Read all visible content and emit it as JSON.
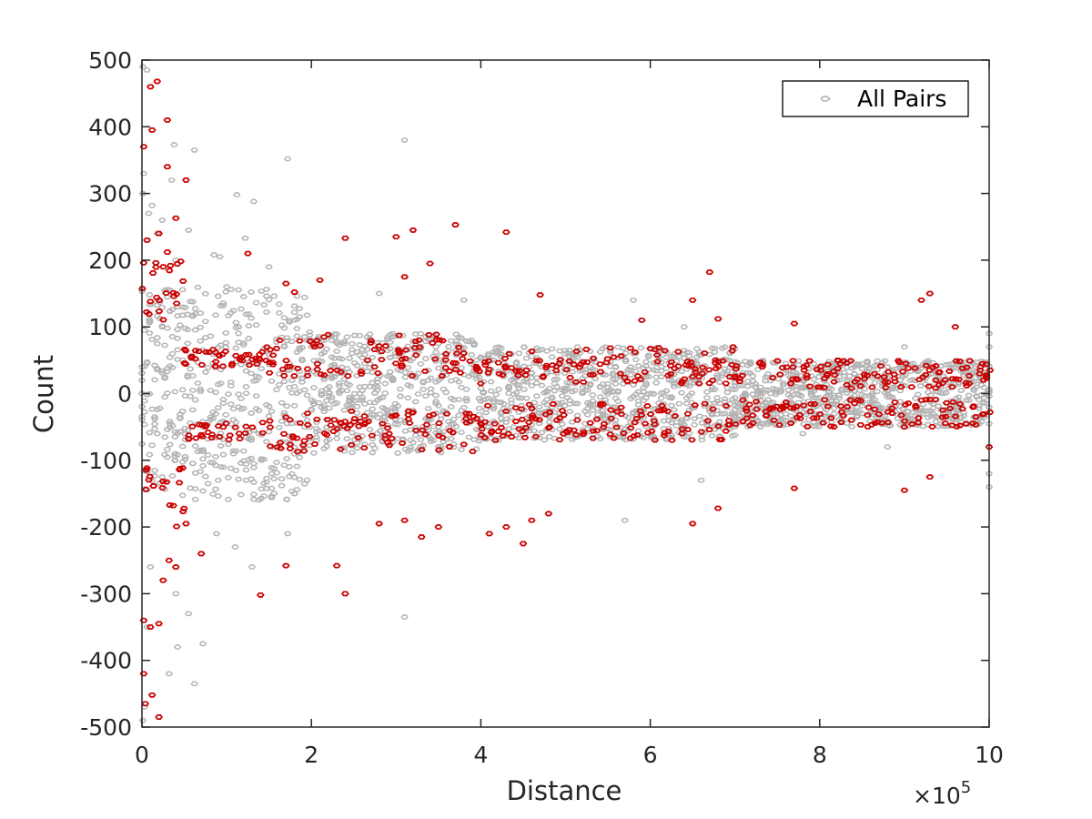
{
  "chart_data": {
    "type": "scatter",
    "xlabel": "Distance",
    "ylabel": "Count",
    "x_exponent_label": {
      "prefix": "×10",
      "exponent": "5"
    },
    "xlim": [
      0,
      1000000
    ],
    "ylim": [
      -500,
      500
    ],
    "x_ticks": [
      0,
      200000,
      400000,
      600000,
      800000,
      1000000
    ],
    "x_tick_labels": [
      "0",
      "2",
      "4",
      "6",
      "8",
      "10"
    ],
    "y_ticks": [
      -500,
      -400,
      -300,
      -200,
      -100,
      0,
      100,
      200,
      300,
      400,
      500
    ],
    "y_tick_labels": [
      "-500",
      "-400",
      "-300",
      "-200",
      "-100",
      "0",
      "100",
      "200",
      "300",
      "400",
      "500"
    ],
    "grid": false,
    "legend": {
      "placement": "top-right",
      "entries": [
        "All Pairs"
      ]
    },
    "series": [
      {
        "name": "All Pairs",
        "color": "#b3b3b3",
        "marker": "hexagon-open",
        "bands": [
          {
            "x0": 0,
            "x1": 200000,
            "ymin": -160,
            "ymax": 160
          },
          {
            "x0": 200000,
            "x1": 400000,
            "ymin": -90,
            "ymax": 90
          },
          {
            "x0": 400000,
            "x1": 700000,
            "ymin": -70,
            "ymax": 70
          },
          {
            "x0": 700000,
            "x1": 1000000,
            "ymin": -50,
            "ymax": 50
          }
        ],
        "points": [
          [
            1000,
            490
          ],
          [
            6000,
            485
          ],
          [
            2000,
            330
          ],
          [
            1000,
            300
          ],
          [
            12000,
            282
          ],
          [
            8000,
            270
          ],
          [
            38000,
            373
          ],
          [
            62000,
            365
          ],
          [
            35000,
            320
          ],
          [
            24000,
            260
          ],
          [
            18000,
            240
          ],
          [
            55000,
            245
          ],
          [
            40000,
            200
          ],
          [
            85000,
            208
          ],
          [
            92000,
            205
          ],
          [
            112000,
            298
          ],
          [
            132000,
            288
          ],
          [
            122000,
            233
          ],
          [
            172000,
            352
          ],
          [
            150000,
            190
          ],
          [
            100000,
            160
          ],
          [
            280000,
            150
          ],
          [
            310000,
            380
          ],
          [
            380000,
            140
          ],
          [
            580000,
            140
          ],
          [
            640000,
            100
          ],
          [
            900000,
            70
          ],
          [
            1000000,
            90
          ],
          [
            1000000,
            70
          ],
          [
            1000,
            -490
          ],
          [
            3000,
            -470
          ],
          [
            6000,
            -350
          ],
          [
            10000,
            -260
          ],
          [
            32000,
            -420
          ],
          [
            42000,
            -380
          ],
          [
            62000,
            -435
          ],
          [
            72000,
            -375
          ],
          [
            55000,
            -330
          ],
          [
            40000,
            -300
          ],
          [
            88000,
            -210
          ],
          [
            110000,
            -230
          ],
          [
            130000,
            -260
          ],
          [
            172000,
            -210
          ],
          [
            180000,
            -150
          ],
          [
            310000,
            -335
          ],
          [
            570000,
            -190
          ],
          [
            660000,
            -130
          ],
          [
            1000000,
            -120
          ],
          [
            1000000,
            -140
          ],
          [
            880000,
            -80
          ],
          [
            780000,
            -60
          ]
        ]
      },
      {
        "name": "",
        "color": "#cc0000",
        "marker": "hexagon-open",
        "bands": [
          {
            "x0": 0,
            "x1": 50000,
            "ymin_abs": 110,
            "ymax_abs": 200
          },
          {
            "x0": 50000,
            "x1": 150000,
            "ymin_abs": 40,
            "ymax_abs": 70
          },
          {
            "x0": 150000,
            "x1": 400000,
            "ymin_abs": 25,
            "ymax_abs": 90
          },
          {
            "x0": 400000,
            "x1": 700000,
            "ymin_abs": 15,
            "ymax_abs": 70
          },
          {
            "x0": 700000,
            "x1": 1000000,
            "ymin_abs": 8,
            "ymax_abs": 50
          }
        ],
        "points": [
          [
            10000,
            460
          ],
          [
            18000,
            468
          ],
          [
            12000,
            395
          ],
          [
            2000,
            370
          ],
          [
            30000,
            410
          ],
          [
            30000,
            340
          ],
          [
            40000,
            263
          ],
          [
            52000,
            320
          ],
          [
            20000,
            240
          ],
          [
            6000,
            230
          ],
          [
            30000,
            212
          ],
          [
            125000,
            210
          ],
          [
            170000,
            165
          ],
          [
            180000,
            152
          ],
          [
            210000,
            170
          ],
          [
            240000,
            233
          ],
          [
            300000,
            235
          ],
          [
            320000,
            245
          ],
          [
            310000,
            175
          ],
          [
            340000,
            195
          ],
          [
            370000,
            253
          ],
          [
            430000,
            242
          ],
          [
            470000,
            148
          ],
          [
            590000,
            110
          ],
          [
            650000,
            140
          ],
          [
            670000,
            182
          ],
          [
            680000,
            112
          ],
          [
            770000,
            105
          ],
          [
            920000,
            140
          ],
          [
            930000,
            150
          ],
          [
            960000,
            100
          ],
          [
            2000,
            -420
          ],
          [
            4000,
            -465
          ],
          [
            12000,
            -452
          ],
          [
            20000,
            -485
          ],
          [
            2000,
            -340
          ],
          [
            10000,
            -350
          ],
          [
            20000,
            -345
          ],
          [
            25000,
            -280
          ],
          [
            32000,
            -250
          ],
          [
            40000,
            -260
          ],
          [
            52000,
            -195
          ],
          [
            70000,
            -240
          ],
          [
            140000,
            -302
          ],
          [
            170000,
            -258
          ],
          [
            230000,
            -258
          ],
          [
            240000,
            -300
          ],
          [
            280000,
            -195
          ],
          [
            310000,
            -190
          ],
          [
            330000,
            -215
          ],
          [
            350000,
            -200
          ],
          [
            410000,
            -210
          ],
          [
            430000,
            -200
          ],
          [
            450000,
            -225
          ],
          [
            460000,
            -190
          ],
          [
            480000,
            -180
          ],
          [
            650000,
            -195
          ],
          [
            680000,
            -172
          ],
          [
            770000,
            -142
          ],
          [
            900000,
            -145
          ],
          [
            930000,
            -125
          ],
          [
            900000,
            -50
          ],
          [
            1000000,
            -80
          ]
        ]
      }
    ]
  }
}
